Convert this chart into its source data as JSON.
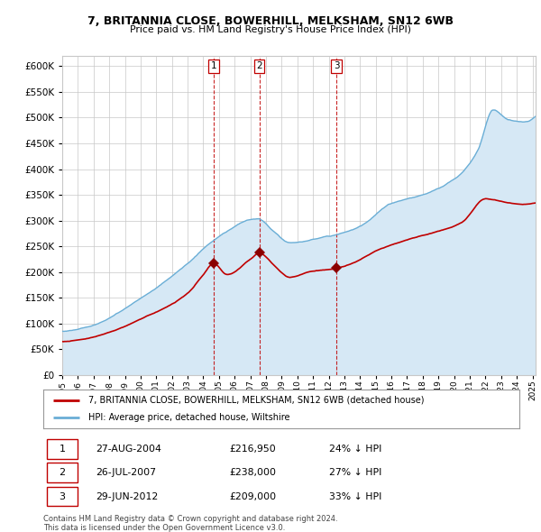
{
  "title": "7, BRITANNIA CLOSE, BOWERHILL, MELKSHAM, SN12 6WB",
  "subtitle": "Price paid vs. HM Land Registry's House Price Index (HPI)",
  "legend_house": "7, BRITANNIA CLOSE, BOWERHILL, MELKSHAM, SN12 6WB (detached house)",
  "legend_hpi": "HPI: Average price, detached house, Wiltshire",
  "footer1": "Contains HM Land Registry data © Crown copyright and database right 2024.",
  "footer2": "This data is licensed under the Open Government Licence v3.0.",
  "sales": [
    {
      "label": "1",
      "date": "27-AUG-2004",
      "price": "£216,950",
      "pct": "24% ↓ HPI",
      "x_year": 2004.66
    },
    {
      "label": "2",
      "date": "26-JUL-2007",
      "price": "£238,000",
      "pct": "27% ↓ HPI",
      "x_year": 2007.57
    },
    {
      "label": "3",
      "date": "29-JUN-2012",
      "price": "£209,000",
      "pct": "33% ↓ HPI",
      "x_year": 2012.49
    }
  ],
  "sale_prices": [
    216950,
    238000,
    209000
  ],
  "hpi_color": "#6aaed6",
  "hpi_fill_color": "#d6e8f5",
  "house_color": "#C00000",
  "sale_marker_color": "#8B0000",
  "vline_color": "#C00000",
  "background_color": "#FFFFFF",
  "grid_color": "#C8C8C8",
  "ylim": [
    0,
    620000
  ],
  "yticks": [
    0,
    50000,
    100000,
    150000,
    200000,
    250000,
    300000,
    350000,
    400000,
    450000,
    500000,
    550000,
    600000
  ],
  "xlim_start": 1995.0,
  "xlim_end": 2025.2,
  "xtick_years": [
    1995,
    1996,
    1997,
    1998,
    1999,
    2000,
    2001,
    2002,
    2003,
    2004,
    2005,
    2006,
    2007,
    2008,
    2009,
    2010,
    2011,
    2012,
    2013,
    2014,
    2015,
    2016,
    2017,
    2018,
    2019,
    2020,
    2021,
    2022,
    2023,
    2024,
    2025
  ]
}
